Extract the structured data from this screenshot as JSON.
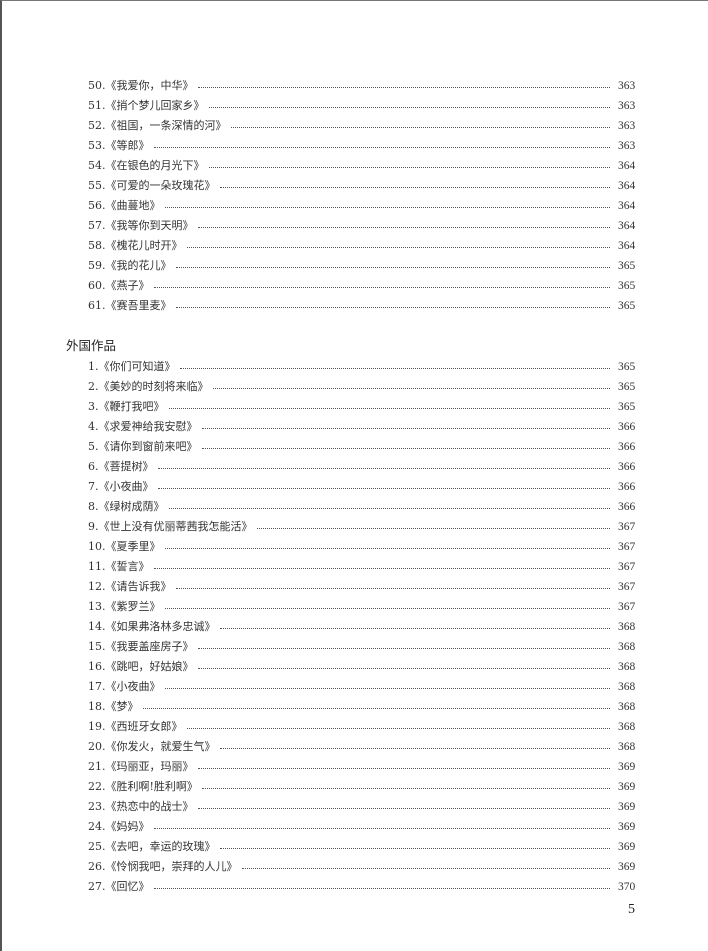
{
  "section1": {
    "items": [
      {
        "title": "50.《我爱你，中华》",
        "page": "363"
      },
      {
        "title": "51.《捎个梦儿回家乡》",
        "page": "363"
      },
      {
        "title": "52.《祖国，一条深情的河》",
        "page": "363"
      },
      {
        "title": "53.《等郎》",
        "page": "363"
      },
      {
        "title": "54.《在银色的月光下》",
        "page": "364"
      },
      {
        "title": "55.《可爱的一朵玫瑰花》",
        "page": "364"
      },
      {
        "title": "56.《曲蔓地》",
        "page": "364"
      },
      {
        "title": "57.《我等你到天明》",
        "page": "364"
      },
      {
        "title": "58.《槐花儿时开》",
        "page": "364"
      },
      {
        "title": "59.《我的花儿》",
        "page": "365"
      },
      {
        "title": "60.《燕子》",
        "page": "365"
      },
      {
        "title": "61.《赛吾里麦》",
        "page": "365"
      }
    ]
  },
  "section2": {
    "heading": "外国作品",
    "items": [
      {
        "title": "1.《你们可知道》",
        "page": "365"
      },
      {
        "title": "2.《美妙的时刻将来临》",
        "page": "365"
      },
      {
        "title": "3.《鞭打我吧》",
        "page": "365"
      },
      {
        "title": "4.《求爱神给我安慰》",
        "page": "366"
      },
      {
        "title": "5.《请你到窗前来吧》",
        "page": "366"
      },
      {
        "title": "6.《菩提树》",
        "page": "366"
      },
      {
        "title": "7.《小夜曲》",
        "page": "366"
      },
      {
        "title": "8.《绿树成荫》",
        "page": "366"
      },
      {
        "title": "9.《世上没有优丽蒂茜我怎能活》",
        "page": "367"
      },
      {
        "title": "10.《夏季里》",
        "page": "367"
      },
      {
        "title": "11.《誓言》",
        "page": "367"
      },
      {
        "title": "12.《请告诉我》",
        "page": "367"
      },
      {
        "title": "13.《紫罗兰》",
        "page": "367"
      },
      {
        "title": "14.《如果弗洛林多忠诚》",
        "page": "368"
      },
      {
        "title": "15.《我要盖座房子》",
        "page": "368"
      },
      {
        "title": "16.《跳吧，好姑娘》",
        "page": "368"
      },
      {
        "title": "17.《小夜曲》",
        "page": "368"
      },
      {
        "title": "18.《梦》",
        "page": "368"
      },
      {
        "title": "19.《西班牙女郎》",
        "page": "368"
      },
      {
        "title": "20.《你发火，就爱生气》",
        "page": "368"
      },
      {
        "title": "21.《玛丽亚，玛丽》",
        "page": "369"
      },
      {
        "title": "22.《胜利啊!胜利啊》",
        "page": "369"
      },
      {
        "title": "23.《热恋中的战士》",
        "page": "369"
      },
      {
        "title": "24.《妈妈》",
        "page": "369"
      },
      {
        "title": "25.《去吧，幸运的玫瑰》",
        "page": "369"
      },
      {
        "title": "26.《怜悯我吧，崇拜的人儿》",
        "page": "369"
      },
      {
        "title": "27.《回忆》",
        "page": "370"
      }
    ]
  },
  "footer": {
    "page_number": "5"
  }
}
